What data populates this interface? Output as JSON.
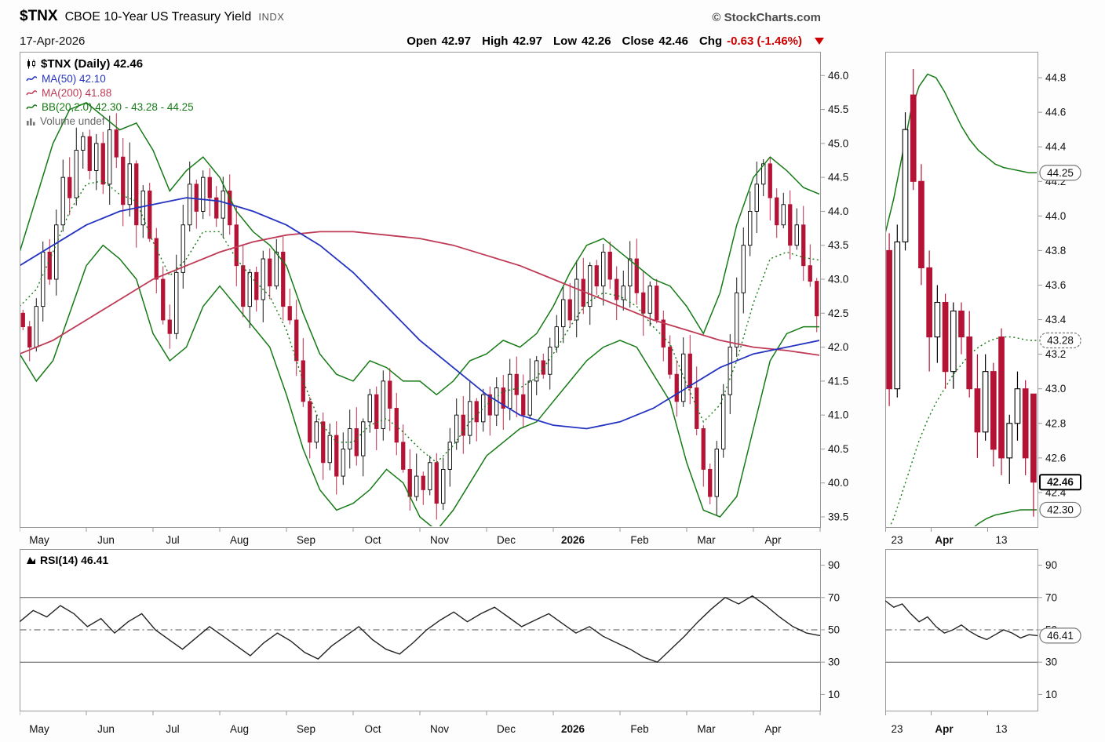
{
  "header": {
    "symbol": "$TNX",
    "name": "CBOE 10-Year US Treasury Yield",
    "exchange": "INDX",
    "brand": "© StockCharts.com",
    "date": "17-Apr-2026",
    "quote": [
      {
        "label": "Open",
        "value": "42.97"
      },
      {
        "label": "High",
        "value": "42.97"
      },
      {
        "label": "Low",
        "value": "42.26"
      },
      {
        "label": "Close",
        "value": "42.46"
      },
      {
        "label": "Chg",
        "value": "-0.63 (-1.46%)",
        "negative": true
      }
    ]
  },
  "legend": {
    "main": [
      {
        "icon": "candlestick-icon",
        "label": "$TNX (Daily) 42.46",
        "color": "#000000"
      },
      {
        "icon": "line-swatch",
        "label": "MA(50) 42.10",
        "color": "#2433c0"
      },
      {
        "icon": "line-swatch",
        "label": "MA(200) 41.88",
        "color": "#bf3a55"
      },
      {
        "icon": "line-swatch",
        "label": "BB(20,2.0) 42.30 - 43.28 - 44.25",
        "color": "#157a15"
      },
      {
        "icon": "volume-icon",
        "label": "Volume undef",
        "color": "#666666"
      }
    ],
    "rsi": {
      "icon": "rsi-icon",
      "label": "RSI(14) 46.41",
      "color": "#000000"
    }
  },
  "colors": {
    "candle_up_stroke": "#000000",
    "candle_up_fill": "#ffffff",
    "candle_down": "#b51335",
    "ma50": "#2433c0",
    "ma200": "#bf3a55",
    "bb": "#157a15",
    "rsi_line": "#222222",
    "axis_text": "#111111",
    "plot_border": "#9a9a9a",
    "level_line": "#555555",
    "chg_negative": "#cc0000"
  },
  "chart_data": {
    "type": "candlestick",
    "title": "$TNX CBOE 10-Year US Treasury Yield (Daily)",
    "main": {
      "y_ticks": [
        46.0,
        45.5,
        45.0,
        44.5,
        44.0,
        43.5,
        43.0,
        42.5,
        42.0,
        41.5,
        41.0,
        40.5,
        40.0,
        39.5
      ],
      "y_range": [
        39.35,
        46.35
      ],
      "x_labels": [
        "May",
        "Jun",
        "Jul",
        "Aug",
        "Sep",
        "Oct",
        "Nov",
        "Dec",
        "2026",
        "Feb",
        "Mar",
        "Apr"
      ],
      "close": [
        42.3,
        42.0,
        42.6,
        43.4,
        43.0,
        43.8,
        44.5,
        44.2,
        44.9,
        45.1,
        44.6,
        45.0,
        44.4,
        45.2,
        44.8,
        44.1,
        44.7,
        43.8,
        44.3,
        43.6,
        43.0,
        42.4,
        42.2,
        43.1,
        43.8,
        44.4,
        44.0,
        44.5,
        44.2,
        43.9,
        44.3,
        43.8,
        43.2,
        42.6,
        43.1,
        42.7,
        43.3,
        42.9,
        43.4,
        42.6,
        42.4,
        41.8,
        41.2,
        40.6,
        40.9,
        40.3,
        40.7,
        40.1,
        40.5,
        40.8,
        40.4,
        40.9,
        41.3,
        40.8,
        41.5,
        41.1,
        40.6,
        40.2,
        39.8,
        40.1,
        39.9,
        40.3,
        39.7,
        40.2,
        40.6,
        41.0,
        40.7,
        41.2,
        40.9,
        41.3,
        41.0,
        41.4,
        41.1,
        41.6,
        41.3,
        41.0,
        41.5,
        41.8,
        41.6,
        42.0,
        42.3,
        42.7,
        42.4,
        43.0,
        42.6,
        43.2,
        42.9,
        43.4,
        43.0,
        42.7,
        42.9,
        43.3,
        42.8,
        42.5,
        42.9,
        42.4,
        42.0,
        41.6,
        41.2,
        41.9,
        41.4,
        40.8,
        40.2,
        39.8,
        40.5,
        41.3,
        42.0,
        42.8,
        43.5,
        44.0,
        44.4,
        44.7,
        44.2,
        43.8,
        44.1,
        43.5,
        43.8,
        43.2,
        42.97,
        42.46
      ],
      "ma50": [
        43.2,
        43.5,
        43.8,
        44.0,
        44.1,
        44.2,
        44.15,
        44.0,
        43.8,
        43.5,
        43.1,
        42.6,
        42.1,
        41.7,
        41.3,
        41.0,
        40.85,
        40.8,
        40.9,
        41.1,
        41.4,
        41.7,
        41.9,
        42.0,
        42.1
      ],
      "ma200": [
        41.9,
        42.1,
        42.4,
        42.7,
        43.0,
        43.2,
        43.4,
        43.55,
        43.65,
        43.7,
        43.7,
        43.65,
        43.6,
        43.5,
        43.35,
        43.2,
        43.0,
        42.8,
        42.6,
        42.4,
        42.25,
        42.1,
        42.0,
        41.95,
        41.88
      ],
      "bb_upper": [
        43.4,
        44.2,
        45.0,
        45.5,
        45.6,
        45.4,
        45.2,
        45.3,
        44.9,
        44.3,
        44.6,
        44.8,
        44.5,
        44.0,
        43.7,
        43.5,
        43.2,
        42.5,
        41.9,
        41.6,
        41.5,
        41.8,
        41.7,
        41.5,
        41.5,
        41.3,
        41.5,
        41.8,
        41.9,
        42.1,
        42.0,
        42.2,
        42.6,
        43.1,
        43.5,
        43.6,
        43.4,
        43.2,
        43.0,
        42.9,
        42.6,
        42.2,
        42.8,
        43.8,
        44.5,
        44.8,
        44.6,
        44.35,
        44.25
      ],
      "bb_mid": [
        42.6,
        42.85,
        43.4,
        44.0,
        44.4,
        44.45,
        44.25,
        44.15,
        43.55,
        43.05,
        43.3,
        43.7,
        43.7,
        43.3,
        43.0,
        42.75,
        42.25,
        41.5,
        40.9,
        40.6,
        40.6,
        40.85,
        40.95,
        40.75,
        40.5,
        40.3,
        40.55,
        40.9,
        41.15,
        41.35,
        41.4,
        41.55,
        41.9,
        42.3,
        42.65,
        42.8,
        42.75,
        42.6,
        42.3,
        42.05,
        41.45,
        40.9,
        41.15,
        41.8,
        42.65,
        43.3,
        43.4,
        43.32,
        43.28
      ],
      "bb_lower": [
        41.9,
        41.5,
        41.8,
        42.5,
        43.2,
        43.5,
        43.3,
        43.0,
        42.2,
        41.8,
        42.0,
        42.6,
        42.9,
        42.6,
        42.3,
        42.0,
        41.3,
        40.5,
        39.9,
        39.6,
        39.7,
        39.9,
        40.2,
        40.0,
        39.5,
        39.3,
        39.6,
        40.0,
        40.4,
        40.6,
        40.8,
        40.9,
        41.2,
        41.5,
        41.8,
        42.0,
        42.1,
        42.0,
        41.6,
        41.2,
        40.3,
        39.6,
        39.5,
        39.8,
        40.8,
        41.8,
        42.2,
        42.3,
        42.3
      ]
    },
    "zoom": {
      "y_ticks": [
        44.8,
        44.6,
        44.4,
        44.2,
        44.0,
        43.8,
        43.6,
        43.4,
        43.2,
        43.0,
        42.8,
        42.6,
        42.4
      ],
      "y_range": [
        42.2,
        44.95
      ],
      "x_labels": [
        "23",
        "Apr",
        "13"
      ],
      "ohlc": [
        [
          43.8,
          43.9,
          42.9,
          43.0
        ],
        [
          43.0,
          43.95,
          42.95,
          43.85
        ],
        [
          43.85,
          44.6,
          43.8,
          44.5
        ],
        [
          44.7,
          44.85,
          44.15,
          44.2
        ],
        [
          44.2,
          44.3,
          43.6,
          43.7
        ],
        [
          43.7,
          43.8,
          43.1,
          43.3
        ],
        [
          43.3,
          43.6,
          43.15,
          43.5
        ],
        [
          43.5,
          43.55,
          43.0,
          43.1
        ],
        [
          43.1,
          43.5,
          43.0,
          43.45
        ],
        [
          43.45,
          43.5,
          43.2,
          43.3
        ],
        [
          43.3,
          43.45,
          42.95,
          43.0
        ],
        [
          43.0,
          43.2,
          42.6,
          42.75
        ],
        [
          42.75,
          43.2,
          42.7,
          43.1
        ],
        [
          43.1,
          43.15,
          42.55,
          42.65
        ],
        [
          43.3,
          43.35,
          42.5,
          42.6
        ],
        [
          42.6,
          42.85,
          42.45,
          42.8
        ],
        [
          42.8,
          43.1,
          42.7,
          43.0
        ],
        [
          43.0,
          43.05,
          42.5,
          42.6
        ],
        [
          42.97,
          42.97,
          42.26,
          42.46
        ]
      ],
      "bb_upper": [
        43.9,
        44.1,
        44.35,
        44.6,
        44.75,
        44.82,
        44.8,
        44.72,
        44.62,
        44.52,
        44.44,
        44.38,
        44.34,
        44.3,
        44.28,
        44.27,
        44.26,
        44.25,
        44.25
      ],
      "bb_mid": [
        42.15,
        42.25,
        42.4,
        42.55,
        42.7,
        42.82,
        42.92,
        43.0,
        43.08,
        43.14,
        43.2,
        43.24,
        43.27,
        43.29,
        43.3,
        43.3,
        43.29,
        43.28,
        43.28
      ],
      "bb_lower": [
        41.3,
        41.2,
        41.15,
        41.25,
        41.4,
        41.6,
        41.8,
        41.95,
        42.05,
        42.12,
        42.18,
        42.22,
        42.25,
        42.27,
        42.28,
        42.29,
        42.3,
        42.3,
        42.3
      ],
      "callouts": [
        {
          "label": "44.25",
          "value": 44.25,
          "style": "oval"
        },
        {
          "label": "43.28",
          "value": 43.28,
          "style": "dashed"
        },
        {
          "label": "42.46",
          "value": 42.46,
          "style": "bold"
        },
        {
          "label": "42.30",
          "value": 42.3,
          "style": "oval"
        }
      ]
    },
    "rsi": {
      "label": "RSI(14) 46.41",
      "y_ticks": [
        90,
        70,
        50,
        30,
        10
      ],
      "levels": {
        "overbought": 70,
        "midline": 50,
        "oversold": 30
      },
      "values": [
        55,
        62,
        58,
        65,
        60,
        52,
        57,
        48,
        55,
        60,
        50,
        44,
        38,
        45,
        52,
        46,
        40,
        34,
        42,
        48,
        43,
        36,
        32,
        40,
        46,
        52,
        44,
        38,
        35,
        42,
        50,
        56,
        61,
        55,
        60,
        64,
        58,
        52,
        56,
        60,
        54,
        48,
        52,
        46,
        42,
        38,
        33,
        30,
        38,
        46,
        55,
        63,
        70,
        66,
        71,
        65,
        58,
        52,
        48,
        46.41
      ],
      "x_labels": [
        "May",
        "Jun",
        "Jul",
        "Aug",
        "Sep",
        "Oct",
        "Nov",
        "Dec",
        "2026",
        "Feb",
        "Mar",
        "Apr"
      ]
    },
    "rsi_zoom": {
      "y_ticks": [
        90,
        70,
        50,
        30,
        10
      ],
      "values": [
        68,
        64,
        66,
        60,
        55,
        58,
        52,
        48,
        50,
        53,
        49,
        46,
        44,
        47,
        50,
        48,
        45,
        47,
        46.41
      ],
      "callout": {
        "label": "46.41",
        "value": 46.41
      },
      "x_labels": [
        "23",
        "Apr",
        "13"
      ]
    }
  }
}
